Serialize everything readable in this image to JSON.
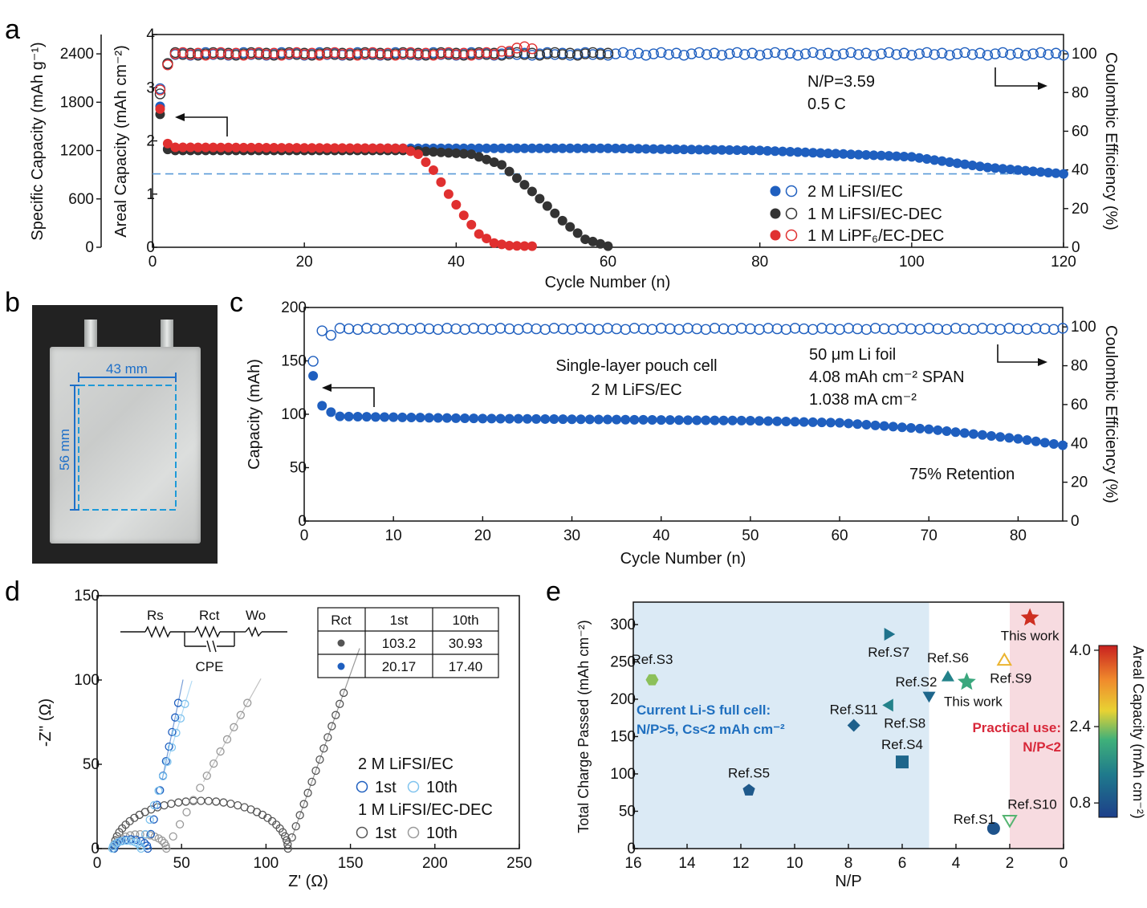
{
  "panels": {
    "a": "a",
    "b": "b",
    "c": "c",
    "d": "d",
    "e": "e"
  },
  "colors": {
    "blue": "#1f5fbf",
    "black": "#333333",
    "red": "#e03030",
    "light_blue": "#7fc3ee",
    "grey": "#888888",
    "dashed": "#5a9ad8"
  },
  "chart_data": [
    {
      "id": "a",
      "type": "scatter",
      "xlabel": "Cycle Number (n)",
      "ylabel_left": "Areal Capacity (mAh cm⁻²)",
      "ylabel_outer": "Specific Capacity (mAh g⁻¹)",
      "ylabel_right": "Coulombic Efficiency (%)",
      "xlim": [
        0,
        120
      ],
      "ylim": [
        0,
        4
      ],
      "ylim_right": [
        0,
        110
      ],
      "ylim_outer": [
        0,
        2640
      ],
      "xticks": [
        "0",
        "20",
        "40",
        "60",
        "80",
        "100",
        "120"
      ],
      "yticks": [
        "0",
        "1",
        "2",
        "3",
        "4"
      ],
      "yticks_outer": [
        "0",
        "600",
        "1200",
        "1800",
        "2400"
      ],
      "yticks_right": [
        "0",
        "20",
        "40",
        "60",
        "80",
        "100"
      ],
      "annotations": {
        "np": "N/P=3.59",
        "rate": "0.5 C"
      },
      "dashed_y": 1.38,
      "series": [
        {
          "name": "2 M LiFSI/EC",
          "color": "#1f5fbf",
          "capacity_keypoints": [
            [
              1,
              2.65
            ],
            [
              2,
              1.85
            ],
            [
              3,
              1.86
            ],
            [
              60,
              1.86
            ],
            [
              80,
              1.82
            ],
            [
              100,
              1.7
            ],
            [
              110,
              1.5
            ],
            [
              120,
              1.38
            ]
          ],
          "ce_keypoints": [
            [
              1,
              82
            ],
            [
              2,
              94
            ],
            [
              3,
              100
            ],
            [
              120,
              100
            ]
          ],
          "n": 120
        },
        {
          "name": "1 M LiFSI/EC-DEC",
          "color": "#333333",
          "capacity_keypoints": [
            [
              1,
              2.5
            ],
            [
              2,
              1.84
            ],
            [
              3,
              1.82
            ],
            [
              34,
              1.82
            ],
            [
              42,
              1.75
            ],
            [
              46,
              1.55
            ],
            [
              50,
              1.05
            ],
            [
              54,
              0.5
            ],
            [
              57,
              0.15
            ],
            [
              60,
              0.02
            ]
          ],
          "ce_keypoints": [
            [
              1,
              80
            ],
            [
              2,
              95
            ],
            [
              3,
              100
            ],
            [
              60,
              100
            ]
          ],
          "n": 60
        },
        {
          "name": "1 M LiPF₆/EC-DEC",
          "color": "#e03030",
          "capacity_keypoints": [
            [
              1,
              2.6
            ],
            [
              2,
              1.95
            ],
            [
              3,
              1.88
            ],
            [
              33,
              1.86
            ],
            [
              35,
              1.75
            ],
            [
              37,
              1.45
            ],
            [
              39,
              1.0
            ],
            [
              41,
              0.6
            ],
            [
              43,
              0.25
            ],
            [
              45,
              0.08
            ],
            [
              47,
              0.03
            ],
            [
              50,
              0.02
            ]
          ],
          "ce_keypoints": [
            [
              1,
              81
            ],
            [
              2,
              95
            ],
            [
              3,
              100
            ],
            [
              45,
              100
            ],
            [
              48,
              103
            ],
            [
              50,
              103
            ]
          ],
          "n": 50
        }
      ],
      "legend": [
        "2 M LiFSI/EC",
        "1 M LiFSI/EC-DEC",
        "1 M LiPF₆/EC-DEC"
      ]
    },
    {
      "id": "c",
      "type": "scatter",
      "xlabel": "Cycle Number (n)",
      "ylabel": "Capacity (mAh)",
      "ylabel_right": "Coulombic Efficiency (%)",
      "xlim": [
        0,
        85
      ],
      "ylim": [
        0,
        200
      ],
      "ylim_right": [
        0,
        110
      ],
      "xticks": [
        "0",
        "10",
        "20",
        "30",
        "40",
        "50",
        "60",
        "70",
        "80"
      ],
      "yticks": [
        "0",
        "50",
        "100",
        "150",
        "200"
      ],
      "yticks_right": [
        "0",
        "20",
        "40",
        "60",
        "80",
        "100"
      ],
      "annotations": {
        "cell": "Single-layer pouch cell",
        "electrolyte": "2 M LiFS/EC",
        "foil": "50 μm Li foil",
        "loading": "4.08 mAh cm⁻² SPAN",
        "current": "1.038 mA cm⁻²",
        "retention": "75% Retention"
      },
      "capacity_keypoints": [
        [
          1,
          136
        ],
        [
          2,
          108
        ],
        [
          3,
          102
        ],
        [
          4,
          98
        ],
        [
          20,
          96
        ],
        [
          50,
          94
        ],
        [
          60,
          92
        ],
        [
          70,
          86
        ],
        [
          80,
          77
        ],
        [
          85,
          71
        ]
      ],
      "ce_keypoints": [
        [
          1,
          82
        ],
        [
          2,
          98
        ],
        [
          3,
          96
        ],
        [
          4,
          99
        ],
        [
          85,
          99
        ]
      ],
      "n": 85,
      "color": "#1f5fbf"
    },
    {
      "id": "d",
      "type": "scatter",
      "xlabel": "Z' (Ω)",
      "ylabel": "-Z'' (Ω)",
      "xlim": [
        0,
        250
      ],
      "ylim": [
        0,
        150
      ],
      "xticks": [
        "0",
        "50",
        "100",
        "150",
        "200",
        "250"
      ],
      "yticks": [
        "0",
        "50",
        "100",
        "150"
      ],
      "circuit": {
        "rs": "Rs",
        "rct": "Rct",
        "wo": "Wo",
        "cpe": "CPE"
      },
      "table": {
        "header": [
          "Rct",
          "1st",
          "10th"
        ],
        "rows": [
          [
            "103.2",
            "30.93"
          ],
          [
            "20.17",
            "17.40"
          ]
        ]
      },
      "legend": {
        "g1": "2 M LiFSI/EC",
        "g2": "1 M LiFSI/EC-DEC",
        "first": "1st",
        "tenth": "10th"
      }
    },
    {
      "id": "e",
      "type": "scatter",
      "xlabel": "N/P",
      "ylabel": "Total Charge Passed (mAh cm⁻²)",
      "xlim": [
        16,
        0
      ],
      "ylim": [
        0,
        330
      ],
      "xticks": [
        "16",
        "14",
        "12",
        "10",
        "8",
        "6",
        "4",
        "2",
        "0"
      ],
      "yticks": [
        "0",
        "50",
        "100",
        "150",
        "200",
        "250",
        "300"
      ],
      "colorbar": {
        "label": "Areal Capacity (mAh cm⁻²)",
        "ticks": [
          "0.8",
          "2.4",
          "4.0"
        ],
        "range": [
          0.5,
          4.1
        ]
      },
      "region_current": "Current Li-S full cell:",
      "region_current_sub": "N/P>5, Cs<2 mAh cm⁻²",
      "region_practical": "Practical use:",
      "region_practical_sub": "N/P<2",
      "points": [
        {
          "label": "Ref.S1",
          "np": 2.6,
          "charge": 27,
          "cap": 0.8,
          "shape": "circle"
        },
        {
          "label": "Ref.S10",
          "np": 2.0,
          "charge": 38,
          "cap": 2.2,
          "shape": "tri-down-open"
        },
        {
          "label": "Ref.S3",
          "np": 15.3,
          "charge": 226,
          "cap": 2.4,
          "shape": "hexagon"
        },
        {
          "label": "Ref.S5",
          "np": 11.7,
          "charge": 78,
          "cap": 0.9,
          "shape": "pentagon"
        },
        {
          "label": "Ref.S7",
          "np": 6.5,
          "charge": 287,
          "cap": 1.3,
          "shape": "tri-right"
        },
        {
          "label": "Ref.S11",
          "np": 7.8,
          "charge": 165,
          "cap": 1.0,
          "shape": "diamond"
        },
        {
          "label": "Ref.S8",
          "np": 6.5,
          "charge": 192,
          "cap": 1.5,
          "shape": "tri-left"
        },
        {
          "label": "Ref.S4",
          "np": 6.0,
          "charge": 116,
          "cap": 1.1,
          "shape": "square"
        },
        {
          "label": "Ref.S6",
          "np": 4.3,
          "charge": 230,
          "cap": 1.5,
          "shape": "tri-up"
        },
        {
          "label": "Ref.S2",
          "np": 5.0,
          "charge": 204,
          "cap": 1.1,
          "shape": "tri-down"
        },
        {
          "label": "This work",
          "np": 3.6,
          "charge": 223,
          "cap": 2.0,
          "shape": "star"
        },
        {
          "label": "Ref.S9",
          "np": 2.2,
          "charge": 252,
          "cap": 3.0,
          "shape": "tri-up-open"
        },
        {
          "label": "This work",
          "np": 1.25,
          "charge": 309,
          "cap": 4.0,
          "shape": "star"
        }
      ]
    }
  ],
  "photo": {
    "width_label": "43 mm",
    "height_label": "56 mm"
  }
}
